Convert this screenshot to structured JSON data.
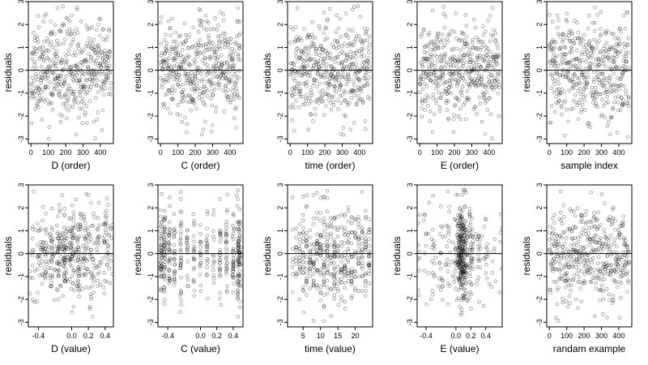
{
  "chart_data": [
    {
      "type": "scatter",
      "xlabel": "D (order)",
      "ylabel": "residuals",
      "xticks": [
        0,
        100,
        200,
        300,
        400
      ],
      "xlim": [
        -15,
        475
      ],
      "yticks": [
        -3,
        -2,
        -1,
        0,
        1,
        2,
        3
      ],
      "ylim": [
        -3.2,
        3.0
      ],
      "n": 460,
      "x_kind": "index",
      "seed": 11,
      "ref_line": 0
    },
    {
      "type": "scatter",
      "xlabel": "C (order)",
      "ylabel": "residuals",
      "xticks": [
        0,
        100,
        200,
        300,
        400
      ],
      "xlim": [
        -15,
        475
      ],
      "yticks": [
        -3,
        -2,
        -1,
        0,
        1,
        2,
        3
      ],
      "ylim": [
        -3.2,
        3.0
      ],
      "n": 460,
      "x_kind": "index",
      "seed": 23,
      "ref_line": 0
    },
    {
      "type": "scatter",
      "xlabel": "time (order)",
      "ylabel": "residuals",
      "xticks": [
        0,
        100,
        200,
        300,
        400
      ],
      "xlim": [
        -15,
        475
      ],
      "yticks": [
        -3,
        -2,
        -1,
        0,
        1,
        2,
        3
      ],
      "ylim": [
        -3.2,
        3.0
      ],
      "n": 460,
      "x_kind": "index",
      "seed": 37,
      "ref_line": 0
    },
    {
      "type": "scatter",
      "xlabel": "E (order)",
      "ylabel": "residuals",
      "xticks": [
        0,
        100,
        200,
        300,
        400
      ],
      "xlim": [
        -15,
        475
      ],
      "yticks": [
        -3,
        -2,
        -1,
        0,
        1,
        2,
        3
      ],
      "ylim": [
        -3.2,
        3.0
      ],
      "n": 460,
      "x_kind": "index",
      "seed": 41,
      "ref_line": 0
    },
    {
      "type": "scatter",
      "xlabel": "sample index",
      "ylabel": "residuals",
      "xticks": [
        0,
        100,
        200,
        300,
        400
      ],
      "xlim": [
        -15,
        475
      ],
      "yticks": [
        -3,
        -2,
        -1,
        0,
        1,
        2,
        3
      ],
      "ylim": [
        -3.2,
        3.0
      ],
      "n": 460,
      "x_kind": "index",
      "seed": 53,
      "ref_line": 0
    },
    {
      "type": "scatter",
      "xlabel": "D (value)",
      "ylabel": "residuals",
      "xticks": [
        -0.4,
        0.0,
        0.2,
        0.4
      ],
      "xtick_labels": [
        "-0.4",
        "0.0",
        "0.2",
        "0.4"
      ],
      "xlim": [
        -0.52,
        0.5
      ],
      "yticks": [
        -3,
        -2,
        -1,
        0,
        1,
        2,
        3
      ],
      "ylim": [
        -3.2,
        3.0
      ],
      "n": 460,
      "x_kind": "clustered",
      "x_levels": [
        -0.48,
        -0.4,
        -0.32,
        -0.24,
        -0.16,
        -0.08,
        0.0,
        0.08,
        0.16,
        0.24,
        0.32,
        0.4,
        0.45
      ],
      "x_weights": [
        2,
        3,
        4,
        5,
        6,
        7,
        8,
        7,
        6,
        5,
        4,
        3,
        2
      ],
      "jitter": 0.02,
      "seed": 61,
      "ref_line": 0
    },
    {
      "type": "scatter",
      "xlabel": "C (value)",
      "ylabel": "residuals",
      "xticks": [
        -0.4,
        0.0,
        0.2,
        0.4
      ],
      "xtick_labels": [
        "-0.4",
        "0.0",
        "0.2",
        "0.4"
      ],
      "xlim": [
        -0.52,
        0.52
      ],
      "yticks": [
        -3,
        -2,
        -1,
        0,
        1,
        2,
        3
      ],
      "ylim": [
        -3.2,
        3.0
      ],
      "n": 460,
      "x_kind": "clustered",
      "x_levels": [
        -0.48,
        -0.44,
        -0.38,
        -0.32,
        -0.24,
        -0.16,
        -0.08,
        0.0,
        0.08,
        0.16,
        0.24,
        0.32,
        0.4,
        0.46,
        0.48
      ],
      "x_weights": [
        7,
        6,
        5,
        4,
        4,
        3,
        3,
        3,
        3,
        3,
        4,
        4,
        5,
        6,
        7
      ],
      "jitter": 0.005,
      "seed": 71,
      "ref_line": 0
    },
    {
      "type": "scatter",
      "xlabel": "time (value)",
      "ylabel": "residuals",
      "xticks": [
        5,
        10,
        15,
        20
      ],
      "xtick_labels": [
        "5",
        "10",
        "15",
        "20"
      ],
      "xlim": [
        0.5,
        25
      ],
      "yticks": [
        -3,
        -2,
        -1,
        0,
        1,
        2,
        3
      ],
      "ylim": [
        -3.2,
        3.0
      ],
      "n": 460,
      "x_kind": "clustered",
      "x_levels": [
        2,
        3,
        4,
        5,
        6,
        7,
        8,
        9,
        10,
        11,
        12,
        13,
        14,
        15,
        16,
        17,
        18,
        19,
        20,
        21,
        22,
        23,
        24
      ],
      "x_weights": [
        2,
        3,
        4,
        5,
        5,
        5,
        5,
        5,
        6,
        6,
        7,
        6,
        6,
        5,
        5,
        5,
        4,
        4,
        4,
        3,
        3,
        4,
        5
      ],
      "jitter": 0.05,
      "seed": 83,
      "ref_line": 0
    },
    {
      "type": "scatter",
      "xlabel": "E (value)",
      "ylabel": "residuals",
      "xticks": [
        -0.4,
        0.0,
        0.2,
        0.4
      ],
      "xtick_labels": [
        "-0.4",
        "0.0",
        "0.2",
        "0.4"
      ],
      "xlim": [
        -0.52,
        0.62
      ],
      "yticks": [
        -3,
        -2,
        -1,
        0,
        1,
        2,
        3
      ],
      "ylim": [
        -3.2,
        3.0
      ],
      "n": 460,
      "x_kind": "clustered",
      "x_levels": [
        -0.5,
        -0.4,
        -0.3,
        -0.2,
        -0.1,
        0.0,
        0.05,
        0.08,
        0.12,
        0.2,
        0.3,
        0.4,
        0.5,
        0.6
      ],
      "x_weights": [
        2,
        2,
        3,
        3,
        4,
        5,
        10,
        16,
        12,
        9,
        3,
        2,
        1,
        1
      ],
      "jitter": 0.02,
      "seed": 97,
      "ref_line": 0
    },
    {
      "type": "scatter",
      "xlabel": "randam example",
      "ylabel": "residuals",
      "xticks": [
        0,
        100,
        200,
        300,
        400
      ],
      "xlim": [
        -15,
        475
      ],
      "yticks": [
        -3,
        -2,
        -1,
        0,
        1,
        2,
        3
      ],
      "ylim": [
        -3.2,
        3.0
      ],
      "n": 460,
      "x_kind": "index",
      "seed": 109,
      "ref_line": 0
    }
  ],
  "style": {
    "point_color": "#000000",
    "point_opacity": 0.45,
    "axis_color": "#000000",
    "background": "#ffffff"
  }
}
